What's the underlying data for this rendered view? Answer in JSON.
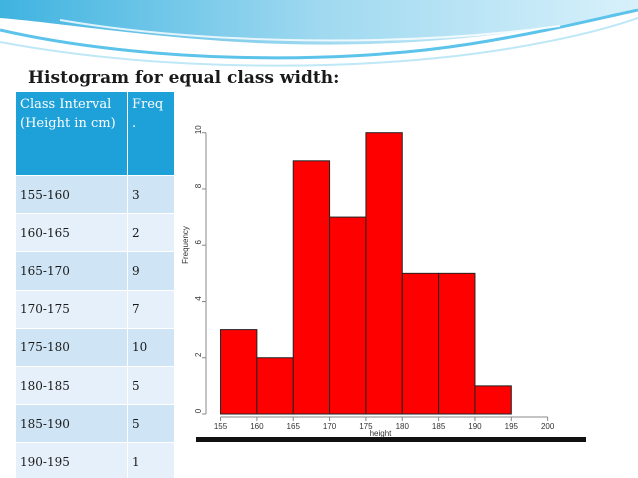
{
  "title": "Histogram for equal class width:",
  "table": {
    "headers": [
      "Class Interval  (Height in cm)",
      "Freq ."
    ],
    "rows": [
      [
        "155-160",
        "3"
      ],
      [
        "160-165",
        "2"
      ],
      [
        "165-170",
        "9"
      ],
      [
        "170-175",
        "7"
      ],
      [
        "175-180",
        "10"
      ],
      [
        "180-185",
        "5"
      ],
      [
        "185-190",
        "5"
      ],
      [
        "190-195",
        "1"
      ]
    ]
  },
  "colors": {
    "header_bg": "#1ea1d9",
    "row_odd": "#cfe5f5",
    "row_even": "#e6f0fa",
    "bar_fill": "#ff0000"
  },
  "chart_data": {
    "type": "bar",
    "title": "",
    "xlabel": "height",
    "ylabel": "Frequency",
    "bins": [
      [
        155,
        160
      ],
      [
        160,
        165
      ],
      [
        165,
        170
      ],
      [
        170,
        175
      ],
      [
        175,
        180
      ],
      [
        180,
        185
      ],
      [
        185,
        190
      ],
      [
        190,
        195
      ]
    ],
    "values": [
      3,
      2,
      9,
      7,
      10,
      5,
      5,
      1
    ],
    "x_ticks": [
      "155",
      "160",
      "165",
      "170",
      "175",
      "180",
      "185",
      "190",
      "195",
      "200"
    ],
    "y_ticks": [
      "0",
      "2",
      "4",
      "6",
      "8",
      "10"
    ],
    "xlim": [
      153,
      205
    ],
    "ylim": [
      0,
      10.7
    ],
    "grid": false,
    "legend": "none"
  }
}
